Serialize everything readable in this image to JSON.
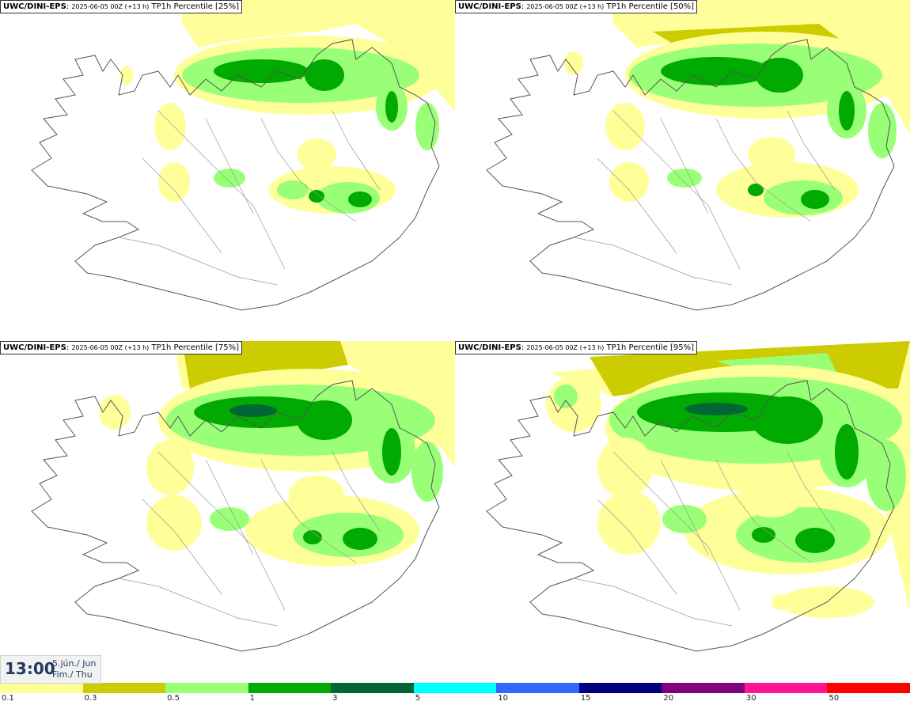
{
  "source": "UWC/DINI-EPS",
  "run_label": "2025-06-05 00Z (+13 h)",
  "variable": "TP1h Percentile",
  "panels": [
    {
      "percentile": "[25%]",
      "level": 0.25
    },
    {
      "percentile": "[50%]",
      "level": 0.5
    },
    {
      "percentile": "[75%]",
      "level": 0.75
    },
    {
      "percentile": "[95%]",
      "level": 0.95
    }
  ],
  "time": {
    "hour": "13:00",
    "date_line1": "5.jún./ Jun",
    "date_line2": "Fim./ Thu"
  },
  "legend": {
    "labels": [
      "0.1",
      "0.3",
      "0.5",
      "1",
      "3",
      "5",
      "10",
      "15",
      "20",
      "30",
      "50"
    ],
    "colors": [
      "#ffff99",
      "#cccc00",
      "#99ff77",
      "#00aa00",
      "#006633",
      "#00ffff",
      "#3366ff",
      "#000080",
      "#800080",
      "#ff1493",
      "#ff0000"
    ]
  }
}
